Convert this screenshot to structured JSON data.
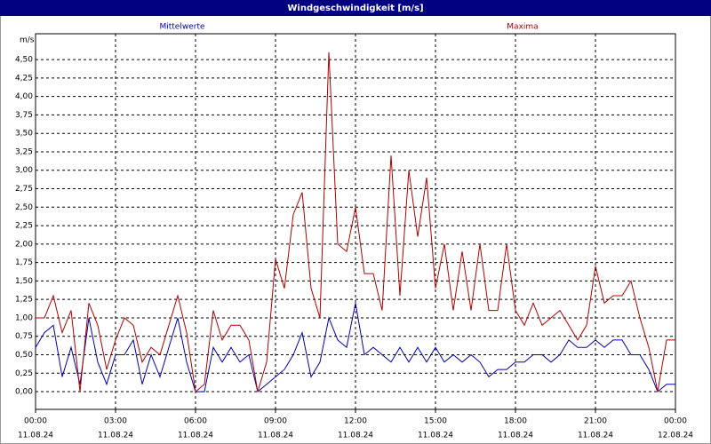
{
  "chart_data": {
    "type": "line",
    "title": "Windgeschwindigkeit [m/s]",
    "ylabel": "m/s",
    "x": [
      0,
      20,
      40,
      60,
      80,
      100,
      120,
      140,
      160,
      180,
      200,
      220,
      240,
      260,
      280,
      300,
      320,
      340,
      360,
      380,
      400,
      420,
      440,
      460,
      480,
      500,
      520,
      540,
      560,
      580,
      600,
      620,
      640,
      660,
      680,
      700,
      720,
      740,
      760,
      780,
      800,
      820,
      840,
      860,
      880,
      900,
      920,
      940,
      960,
      980,
      1000,
      1020,
      1040,
      1060,
      1080,
      1100,
      1120,
      1140,
      1160,
      1180,
      1200,
      1220,
      1240,
      1260,
      1280,
      1300,
      1320,
      1340,
      1360,
      1380,
      1400,
      1420,
      1440
    ],
    "series": [
      {
        "name": "Mittelwerte",
        "color": "#0000b0",
        "values": [
          0.6,
          0.8,
          0.9,
          0.2,
          0.6,
          0.1,
          1.0,
          0.4,
          0.1,
          0.5,
          0.5,
          0.7,
          0.1,
          0.5,
          0.2,
          0.6,
          1.0,
          0.4,
          0.0,
          0.0,
          0.6,
          0.4,
          0.6,
          0.4,
          0.5,
          0.0,
          0.1,
          0.2,
          0.3,
          0.5,
          0.8,
          0.2,
          0.4,
          1.0,
          0.7,
          0.6,
          1.2,
          0.5,
          0.6,
          0.5,
          0.4,
          0.6,
          0.4,
          0.6,
          0.4,
          0.6,
          0.4,
          0.5,
          0.4,
          0.5,
          0.4,
          0.2,
          0.3,
          0.3,
          0.4,
          0.4,
          0.5,
          0.5,
          0.4,
          0.5,
          0.7,
          0.6,
          0.6,
          0.7,
          0.6,
          0.7,
          0.7,
          0.5,
          0.5,
          0.3,
          0.0,
          0.1,
          0.1
        ]
      },
      {
        "name": "Maxima",
        "color": "#b00000",
        "values": [
          1.0,
          1.0,
          1.3,
          0.8,
          1.1,
          0.0,
          1.2,
          0.9,
          0.3,
          0.7,
          1.0,
          0.9,
          0.4,
          0.6,
          0.5,
          0.9,
          1.3,
          0.8,
          0.0,
          0.1,
          1.1,
          0.7,
          0.9,
          0.9,
          0.7,
          0.0,
          0.4,
          1.8,
          1.4,
          2.4,
          2.7,
          1.4,
          1.0,
          4.6,
          2.0,
          1.9,
          2.5,
          1.6,
          1.6,
          1.1,
          3.2,
          1.3,
          3.0,
          2.1,
          2.9,
          1.4,
          2.0,
          1.1,
          1.9,
          1.1,
          2.0,
          1.1,
          1.1,
          2.0,
          1.1,
          0.9,
          1.2,
          0.9,
          1.0,
          1.1,
          0.9,
          0.7,
          0.9,
          1.7,
          1.2,
          1.3,
          1.3,
          1.5,
          1.0,
          0.6,
          0.0,
          0.7,
          0.7
        ]
      }
    ],
    "xlim": [
      0,
      1440
    ],
    "xticks": [
      {
        "value": 0,
        "label": "00:00",
        "date": "11.08.24"
      },
      {
        "value": 180,
        "label": "03:00",
        "date": "11.08.24"
      },
      {
        "value": 360,
        "label": "06:00",
        "date": "11.08.24"
      },
      {
        "value": 540,
        "label": "09:00",
        "date": "11.08.24"
      },
      {
        "value": 720,
        "label": "12:00",
        "date": "11.08.24"
      },
      {
        "value": 900,
        "label": "15:00",
        "date": "11.08.24"
      },
      {
        "value": 1080,
        "label": "18:00",
        "date": "11.08.24"
      },
      {
        "value": 1260,
        "label": "21:00",
        "date": "11.08.24"
      },
      {
        "value": 1440,
        "label": "00:00",
        "date": "12.08.24"
      }
    ],
    "ylim": [
      -0.24,
      4.85
    ],
    "yticks": [
      {
        "value": 0,
        "label": "0,00"
      },
      {
        "value": 0.25,
        "label": "0,25"
      },
      {
        "value": 0.5,
        "label": "0,50"
      },
      {
        "value": 0.75,
        "label": "0,75"
      },
      {
        "value": 1,
        "label": "1,00"
      },
      {
        "value": 1.25,
        "label": "1,25"
      },
      {
        "value": 1.5,
        "label": "1,50"
      },
      {
        "value": 1.75,
        "label": "1,75"
      },
      {
        "value": 2,
        "label": "2,00"
      },
      {
        "value": 2.25,
        "label": "2,25"
      },
      {
        "value": 2.5,
        "label": "2,50"
      },
      {
        "value": 2.75,
        "label": "2,75"
      },
      {
        "value": 3,
        "label": "3,00"
      },
      {
        "value": 3.25,
        "label": "3,25"
      },
      {
        "value": 3.5,
        "label": "3,50"
      },
      {
        "value": 3.75,
        "label": "3,75"
      },
      {
        "value": 4,
        "label": "4,00"
      },
      {
        "value": 4.25,
        "label": "4,25"
      },
      {
        "value": 4.5,
        "label": "4,50"
      }
    ],
    "grid": true
  }
}
